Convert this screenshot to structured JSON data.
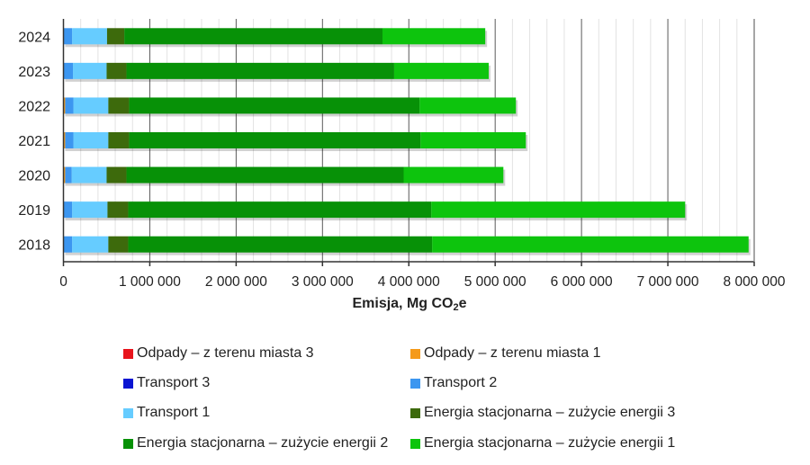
{
  "chart_data": {
    "type": "bar",
    "orientation": "horizontal",
    "stacked": true,
    "title": "",
    "xlabel": "Emisja, Mg CO2e",
    "xlabel_main": "Emisja, Mg CO",
    "xlabel_sub": "2",
    "xlabel_tail": "e",
    "ylabel": "",
    "xlim": [
      0,
      8000000
    ],
    "grid": {
      "major_step": 1000000,
      "minor_step": 200000
    },
    "categories": [
      "2024",
      "2023",
      "2022",
      "2021",
      "2020",
      "2019",
      "2018"
    ],
    "x_ticks": [
      "0",
      "1 000 000",
      "2 000 000",
      "3 000 000",
      "4 000 000",
      "5 000 000",
      "6 000 000",
      "7 000 000",
      "8 000 000"
    ],
    "series": [
      {
        "name": "Odpady – z terenu miasta 3",
        "color": "#e8141c",
        "values": [
          0,
          0,
          0,
          0,
          0,
          0,
          0
        ]
      },
      {
        "name": "Odpady – z terenu miasta 1",
        "color": "#f59a1a",
        "values": [
          0,
          0,
          20000,
          20000,
          20000,
          0,
          0
        ]
      },
      {
        "name": "Transport 3",
        "color": "#0a14d2",
        "values": [
          0,
          0,
          0,
          0,
          0,
          0,
          0
        ]
      },
      {
        "name": "Transport 2",
        "color": "#3c96f0",
        "values": [
          100000,
          110000,
          95000,
          95000,
          75000,
          100000,
          100000
        ]
      },
      {
        "name": "Transport 1",
        "color": "#66ccff",
        "values": [
          405000,
          390000,
          405000,
          405000,
          405000,
          410000,
          420000
        ]
      },
      {
        "name": "Energia stacjonarna – zużycie energii 3",
        "color": "#3d6a0c",
        "values": [
          200000,
          230000,
          240000,
          240000,
          230000,
          240000,
          230000
        ]
      },
      {
        "name": "Energia stacjonarna – zużycie energii 2",
        "color": "#079107",
        "values": [
          2990000,
          3100000,
          3365000,
          3375000,
          3210000,
          3510000,
          3520000
        ]
      },
      {
        "name": "Energia stacjonarna – zużycie energii 1",
        "color": "#0dc40d",
        "values": [
          1190000,
          1095000,
          1115000,
          1220000,
          1155000,
          2940000,
          3665000
        ]
      }
    ],
    "legend_position": "bottom",
    "legend_order": [
      0,
      1,
      2,
      3,
      4,
      5,
      6,
      7
    ]
  }
}
